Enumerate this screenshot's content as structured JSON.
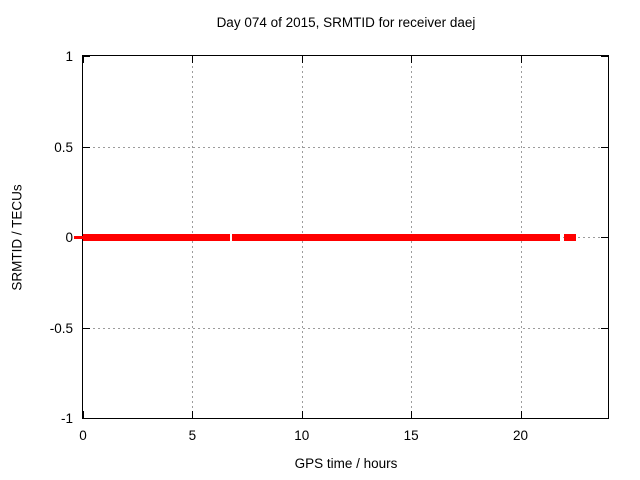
{
  "title": "Day 074 of 2015, SRMTID for receiver daej",
  "chart_data": {
    "type": "line",
    "title": "Day 074 of 2015, SRMTID for receiver daej",
    "xlabel": "GPS time / hours",
    "ylabel": "SRMTID / TECUs",
    "xlim": [
      0,
      24
    ],
    "ylim": [
      -1,
      1
    ],
    "xticks": [
      0,
      5,
      10,
      15,
      20
    ],
    "xtick_labels": [
      "0",
      "5",
      "10",
      "15",
      "20"
    ],
    "yticks": [
      1,
      0.5,
      0,
      -0.5,
      -1
    ],
    "ytick_labels": [
      "1",
      "0.5",
      "0",
      "-0.5",
      "-1"
    ],
    "grid": true,
    "legend": "none",
    "series": [
      {
        "name": "SRMTID",
        "value": 0,
        "note": "flat line at y=0, thick red, with small data gaps",
        "segments_hours": [
          [
            0.02,
            6.7
          ],
          [
            6.8,
            21.8
          ],
          [
            21.97,
            22.55
          ]
        ]
      }
    ]
  },
  "colors": {
    "line": "#ff0000",
    "grid": "#9c9c9c",
    "border": "#000000",
    "background": "#ffffff",
    "text": "#000000"
  }
}
